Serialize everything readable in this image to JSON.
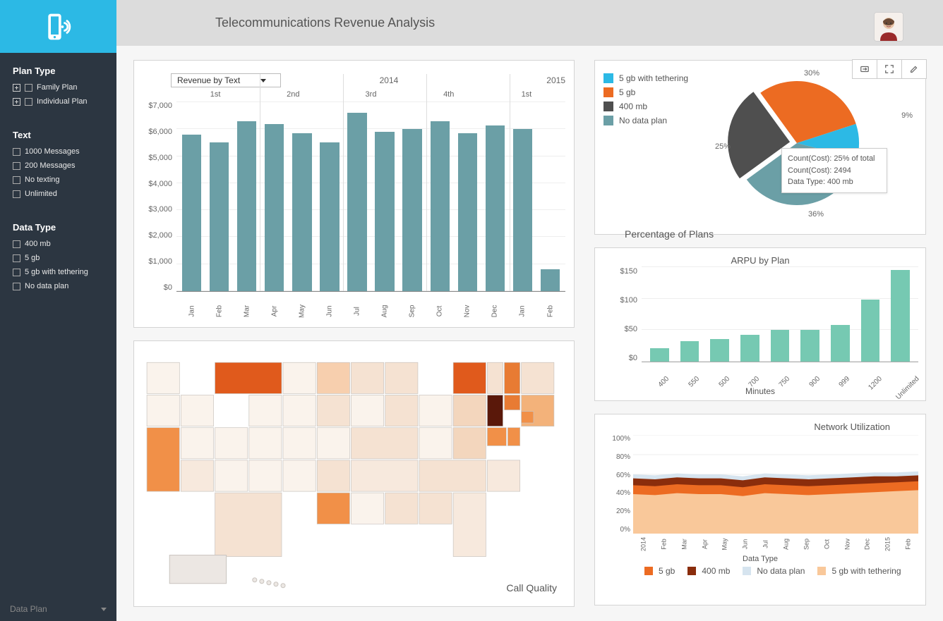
{
  "header": {
    "title": "Telecommunications Revenue Analysis"
  },
  "sidebar": {
    "groups": [
      {
        "title": "Plan Type",
        "expandable": true,
        "items": [
          "Family Plan",
          "Individual Plan"
        ]
      },
      {
        "title": "Text",
        "expandable": false,
        "items": [
          "1000 Messages",
          "200 Messages",
          "No texting",
          "Unlimited"
        ]
      },
      {
        "title": "Data Type",
        "expandable": false,
        "items": [
          "400 mb",
          "5 gb",
          "5 gb with tethering",
          "No data plan"
        ]
      }
    ],
    "bottom_selector": "Data Plan"
  },
  "revenue_chart": {
    "type": "bar",
    "selector_label": "Revenue by Text",
    "year_labels": [
      "2014",
      "2015"
    ],
    "quarter_labels": [
      "1st",
      "2nd",
      "3rd",
      "4th",
      "1st"
    ],
    "quarter_boundaries": [
      3,
      6,
      9,
      12
    ],
    "months": [
      "Jan",
      "Feb",
      "Mar",
      "Apr",
      "May",
      "Jun",
      "Jul",
      "Aug",
      "Sep",
      "Oct",
      "Nov",
      "Dec",
      "Jan",
      "Feb"
    ],
    "values": [
      5800,
      5500,
      6300,
      6200,
      5850,
      5500,
      6600,
      5900,
      6000,
      6300,
      5850,
      6150,
      6000,
      800
    ],
    "ylim": [
      0,
      7000
    ],
    "ytick_step": 1000,
    "yticks": [
      "$7,000",
      "$6,000",
      "$5,000",
      "$4,000",
      "$3,000",
      "$2,000",
      "$1,000",
      "$0"
    ],
    "bar_color": "#6b9fa6",
    "grid_color": "#eeeeee",
    "background_color": "#ffffff"
  },
  "pie_chart": {
    "type": "pie",
    "title": "Percentage of Plans",
    "legend": [
      {
        "label": "5 gb with tethering",
        "color": "#2cb9e5",
        "pct": 9
      },
      {
        "label": "5 gb",
        "color": "#ec6b22",
        "pct": 30
      },
      {
        "label": "400 mb",
        "color": "#4f4f4f",
        "pct": 25
      },
      {
        "label": "No data plan",
        "color": "#6b9fa6",
        "pct": 36
      }
    ],
    "tooltip": {
      "lines": [
        "Count(Cost): 25% of total",
        "Count(Cost): 2494",
        "Data Type: 400 mb"
      ]
    },
    "label_fontsize": 11
  },
  "arpu_chart": {
    "type": "bar",
    "title": "ARPU by Plan",
    "xlabel": "Minutes",
    "categories": [
      "400",
      "550",
      "500",
      "700",
      "750",
      "900",
      "999",
      "1200",
      "Unlimited"
    ],
    "values": [
      21,
      33,
      36,
      42,
      50,
      50,
      58,
      98,
      146
    ],
    "ylim": [
      0,
      150
    ],
    "ytick_step": 50,
    "yticks": [
      "$150",
      "$100",
      "$50",
      "$0"
    ],
    "bar_color": "#76c9b2",
    "grid_color": "#eeeeee"
  },
  "network_chart": {
    "type": "area",
    "title": "Network Utilization",
    "xlabel": "Data Type",
    "months": [
      "2014",
      "Feb",
      "Mar",
      "Apr",
      "May",
      "Jun",
      "Jul",
      "Aug",
      "Sep",
      "Oct",
      "Nov",
      "Dec",
      "2015",
      "Feb"
    ],
    "ylim": [
      0,
      100
    ],
    "ytick_step": 20,
    "yticks": [
      "100%",
      "80%",
      "60%",
      "40%",
      "20%",
      "0%"
    ],
    "series": [
      {
        "name": "5 gb with tethering",
        "color": "#f9c89a",
        "values": [
          40,
          39,
          41,
          40,
          40,
          38,
          41,
          40,
          39,
          40,
          41,
          42,
          43,
          44
        ]
      },
      {
        "name": "5 gb",
        "color": "#ec6b22",
        "values": [
          49,
          48,
          50,
          49,
          49,
          47,
          50,
          49,
          48,
          49,
          50,
          51,
          52,
          53
        ]
      },
      {
        "name": "400 mb",
        "color": "#8a2d0c",
        "values": [
          56,
          55,
          57,
          56,
          56,
          54,
          57,
          56,
          55,
          56,
          57,
          58,
          58,
          59
        ]
      },
      {
        "name": "No data plan",
        "color": "#d6e4ef",
        "values": [
          60,
          59,
          61,
          60,
          60,
          58,
          61,
          60,
          59,
          60,
          61,
          62,
          62,
          63
        ]
      }
    ],
    "legend": [
      {
        "label": "5 gb",
        "color": "#ec6b22"
      },
      {
        "label": "400 mb",
        "color": "#8a2d0c"
      },
      {
        "label": "No data plan",
        "color": "#d6e4ef"
      },
      {
        "label": "5 gb with tethering",
        "color": "#f9c89a"
      }
    ],
    "grid_color": "#eeeeee"
  },
  "map": {
    "title": "Call Quality",
    "base_color": "#ece7e3",
    "highlight_states": {
      "MT": "#e05a1c",
      "CA": "#f19048",
      "NY": "#e05a1c",
      "NJ": "#5a180a",
      "LA": "#f19048",
      "MN": "#f7cfae",
      "WI": "#f5e2d2",
      "IA": "#f5e2d2",
      "MI": "#f5e2d2",
      "IN": "#f5e2d2",
      "KY": "#f5e2d2",
      "VA": "#f3d6bd",
      "NC": "#f5e2d2",
      "GA": "#f5e2d2",
      "AL": "#f5e2d2",
      "TN": "#f7e9dd",
      "PA": "#f3d6bd",
      "MD": "#f19048",
      "CT": "#e87b33",
      "MA": "#f3b27a",
      "NH": "#e87b33",
      "OH": "#faf3ec",
      "IL": "#faf3ec",
      "MO": "#faf3ec",
      "TX": "#f5e2d2",
      "OK": "#faf3ec",
      "AR": "#f5e2d2",
      "MS": "#faf3ec",
      "FL": "#f7e9dd",
      "SC": "#f7e9dd",
      "WA": "#faf3ec",
      "OR": "#faf3ec",
      "NV": "#faf3ec",
      "AZ": "#f7e9dd",
      "CO": "#faf3ec",
      "NM": "#faf3ec",
      "KS": "#faf3ec",
      "NE": "#faf3ec",
      "SD": "#faf3ec",
      "ND": "#faf3ec",
      "WY": "#faf3ec",
      "UT": "#faf3ec",
      "ID": "#faf3ec",
      "ME": "#f5e2d2",
      "VT": "#f5e2d2",
      "RI": "#f19048",
      "DE": "#f19048",
      "WV": "#faf3ec"
    }
  },
  "colors": {
    "brand": "#2cb9e5",
    "sidebar_bg": "#2c3641",
    "header_bg": "#dcdcdc",
    "panel_border": "#d4d4d4"
  }
}
